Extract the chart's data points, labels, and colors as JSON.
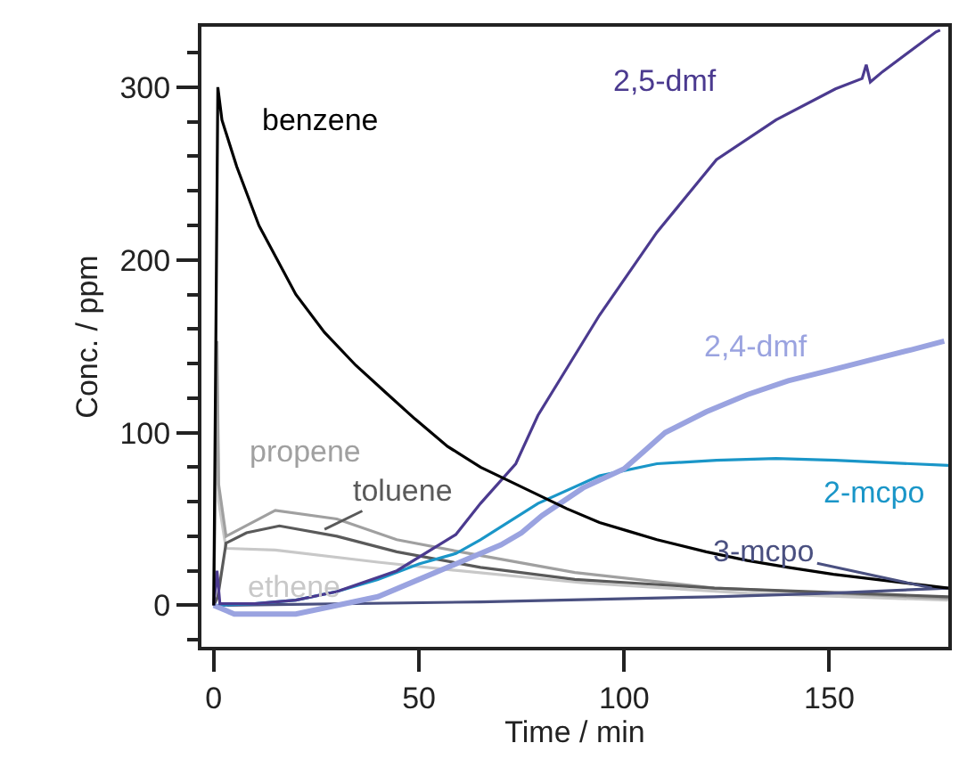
{
  "chart_data": {
    "type": "line",
    "xlabel": "Time / min",
    "ylabel": "Conc. / ppm",
    "xlim": [
      -3,
      179
    ],
    "ylim": [
      -24,
      335
    ],
    "xticks": [
      0,
      50,
      100,
      150
    ],
    "yticks": [
      {
        "value": -20,
        "label": null
      },
      0,
      {
        "value": 20,
        "label": null
      },
      {
        "value": 40,
        "label": null
      },
      {
        "value": 60,
        "label": null
      },
      {
        "value": 80,
        "label": null
      },
      100,
      {
        "value": 120,
        "label": null
      },
      {
        "value": 140,
        "label": null
      },
      {
        "value": 160,
        "label": null
      },
      {
        "value": 180,
        "label": null
      },
      200,
      {
        "value": 220,
        "label": null
      },
      {
        "value": 240,
        "label": null
      },
      {
        "value": 260,
        "label": null
      },
      {
        "value": 280,
        "label": null
      },
      300,
      {
        "value": 320,
        "label": null
      }
    ],
    "legend": false,
    "marker": "none",
    "line_style": "solid",
    "series": [
      {
        "name": "ethene",
        "color": "#c8c8c8",
        "x": [
          0,
          0.8,
          1.2,
          3,
          15,
          40,
          60,
          90,
          130,
          179
        ],
        "values": [
          0,
          133,
          60,
          33,
          32,
          25,
          20,
          13,
          7,
          3
        ]
      },
      {
        "name": "propene",
        "color": "#a0a0a0",
        "x": [
          0,
          0.8,
          1.2,
          3,
          15,
          30,
          44.6,
          60,
          88,
          122,
          179
        ],
        "values": [
          0,
          153,
          70,
          40,
          55,
          50,
          38,
          31,
          19,
          10,
          4
        ]
      },
      {
        "name": "toluene",
        "color": "#5a5a5a",
        "x": [
          0,
          1,
          3,
          8,
          16,
          30,
          44.6,
          65,
          88,
          122,
          179
        ],
        "values": [
          0,
          5,
          36,
          42,
          46,
          40,
          31,
          22,
          15,
          10,
          5
        ]
      },
      {
        "name": "3-mcpo",
        "color": "#4a5080",
        "x": [
          0,
          65,
          122,
          150,
          179
        ],
        "values": [
          0,
          2,
          5,
          7,
          10
        ]
      },
      {
        "name": "2-mcpo",
        "color": "#1a96c8",
        "x": [
          0,
          10,
          20,
          30,
          40,
          50,
          59,
          65,
          79,
          94,
          108,
          122.5,
          137,
          151.5,
          179
        ],
        "values": [
          0,
          1,
          3,
          8,
          15,
          24,
          30,
          38,
          59,
          75,
          82,
          84,
          85,
          84,
          81
        ]
      },
      {
        "name": "2,4-dmf",
        "color": "#9aa3e0",
        "x": [
          0,
          5,
          20,
          30,
          40,
          50,
          60,
          70,
          75,
          80,
          90,
          100,
          110,
          120,
          130,
          140,
          150,
          160,
          170,
          178
        ],
        "values": [
          0,
          -5,
          -5,
          0,
          5,
          15,
          25,
          35,
          42,
          52,
          68,
          79,
          100,
          112,
          122,
          130,
          136,
          142,
          148,
          153
        ]
      },
      {
        "name": "2,5-dmf",
        "color": "#4b3a8f",
        "x": [
          0,
          0.8,
          1.5,
          10,
          20,
          30,
          44.6,
          59,
          65,
          73.6,
          79,
          94,
          108,
          122.5,
          137,
          151.5,
          158,
          159,
          160,
          163,
          176,
          177
        ],
        "values": [
          0,
          20,
          1,
          1,
          3,
          8,
          20,
          41,
          59,
          82,
          110,
          168,
          216,
          258,
          281,
          299,
          305,
          313,
          303,
          309,
          332,
          333
        ]
      },
      {
        "name": "benzene",
        "color": "#000000",
        "x": [
          0,
          0.5,
          1,
          2,
          5.6,
          11,
          20,
          27,
          34.6,
          42,
          49,
          57,
          65,
          72,
          79,
          86,
          94,
          101,
          108,
          120,
          130,
          140,
          151,
          165,
          179
        ],
        "values": [
          0,
          150,
          300,
          281,
          254,
          220,
          180,
          158,
          139,
          123,
          108,
          92,
          80,
          72,
          64,
          56,
          48,
          43,
          38,
          31,
          26,
          22,
          18,
          14,
          10
        ]
      }
    ]
  }
}
